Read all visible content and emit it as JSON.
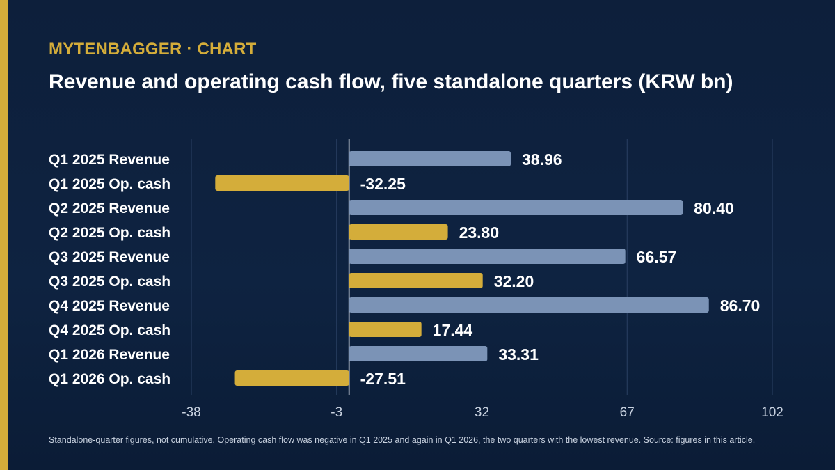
{
  "header": {
    "brand": "MYTENBAGGER · CHART",
    "title": "Revenue and operating cash flow, five standalone quarters (KRW bn)"
  },
  "footnote": "Standalone-quarter figures, not cumulative. Operating cash flow was negative in Q1 2025 and again in Q1 2026, the two quarters with the lowest revenue. Source: figures in this article.",
  "colors": {
    "revenue": "#7b93b6",
    "op_cash": "#d4ad3a",
    "accent": "#d4ad3a",
    "background": "#0d1f3b"
  },
  "chart_data": {
    "type": "bar",
    "orientation": "horizontal",
    "title": "Revenue and operating cash flow, five standalone quarters (KRW bn)",
    "categories": [
      "Q1 2025 Revenue",
      "Q1 2025 Op. cash",
      "Q2 2025 Revenue",
      "Q2 2025 Op. cash",
      "Q3 2025 Revenue",
      "Q3 2025 Op. cash",
      "Q4 2025 Revenue",
      "Q4 2025 Op. cash",
      "Q1 2026 Revenue",
      "Q1 2026 Op. cash"
    ],
    "values": [
      38.96,
      -32.25,
      80.4,
      23.8,
      66.57,
      32.2,
      86.7,
      17.44,
      33.31,
      -27.51
    ],
    "value_labels": [
      "38.96",
      "-32.25",
      "80.40",
      "23.80",
      "66.57",
      "32.20",
      "86.70",
      "17.44",
      "33.31",
      "-27.51"
    ],
    "kinds": [
      "revenue",
      "op_cash",
      "revenue",
      "op_cash",
      "revenue",
      "op_cash",
      "revenue",
      "op_cash",
      "revenue",
      "op_cash"
    ],
    "xticks": [
      -38,
      -3,
      32,
      67,
      102
    ],
    "xtick_labels": [
      "-38",
      "-3",
      "32",
      "67",
      "102"
    ],
    "xlim": [
      -38,
      102
    ],
    "zero_line": 0,
    "grid": true,
    "legend": "none"
  }
}
